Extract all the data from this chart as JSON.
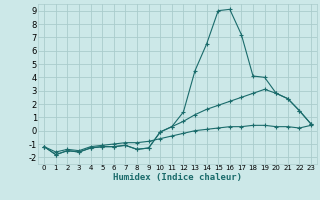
{
  "xlabel": "Humidex (Indice chaleur)",
  "bg_color": "#cce8e8",
  "grid_color": "#aacccc",
  "line_color": "#1a6b6b",
  "xlim": [
    -0.5,
    23.5
  ],
  "ylim": [
    -2.5,
    9.5
  ],
  "xticks": [
    0,
    1,
    2,
    3,
    4,
    5,
    6,
    7,
    8,
    9,
    10,
    11,
    12,
    13,
    14,
    15,
    16,
    17,
    18,
    19,
    20,
    21,
    22,
    23
  ],
  "yticks": [
    -2,
    -1,
    0,
    1,
    2,
    3,
    4,
    5,
    6,
    7,
    8,
    9
  ],
  "series1_x": [
    0,
    1,
    2,
    3,
    4,
    5,
    6,
    7,
    8,
    9,
    10,
    11,
    12,
    13,
    14,
    15,
    16,
    17,
    18,
    19,
    20,
    21,
    22,
    23
  ],
  "series1_y": [
    -1.2,
    -1.8,
    -1.5,
    -1.6,
    -1.3,
    -1.2,
    -1.2,
    -1.1,
    -1.4,
    -1.3,
    -0.1,
    0.3,
    1.4,
    4.5,
    6.5,
    9.0,
    9.1,
    7.2,
    4.1,
    4.0,
    2.8,
    2.4,
    1.5,
    0.5
  ],
  "series2_x": [
    0,
    1,
    2,
    3,
    4,
    5,
    6,
    7,
    8,
    9,
    10,
    11,
    12,
    13,
    14,
    15,
    16,
    17,
    18,
    19,
    20,
    21,
    22,
    23
  ],
  "series2_y": [
    -1.2,
    -1.8,
    -1.5,
    -1.6,
    -1.3,
    -1.2,
    -1.2,
    -1.1,
    -1.4,
    -1.3,
    -0.1,
    0.3,
    0.7,
    1.2,
    1.6,
    1.9,
    2.2,
    2.5,
    2.8,
    3.1,
    2.8,
    2.4,
    1.5,
    0.5
  ],
  "series3_x": [
    0,
    1,
    2,
    3,
    4,
    5,
    6,
    7,
    8,
    9,
    10,
    11,
    12,
    13,
    14,
    15,
    16,
    17,
    18,
    19,
    20,
    21,
    22,
    23
  ],
  "series3_y": [
    -1.2,
    -1.6,
    -1.4,
    -1.5,
    -1.2,
    -1.1,
    -1.0,
    -0.9,
    -0.9,
    -0.8,
    -0.6,
    -0.4,
    -0.2,
    0.0,
    0.1,
    0.2,
    0.3,
    0.3,
    0.4,
    0.4,
    0.3,
    0.3,
    0.2,
    0.4
  ]
}
